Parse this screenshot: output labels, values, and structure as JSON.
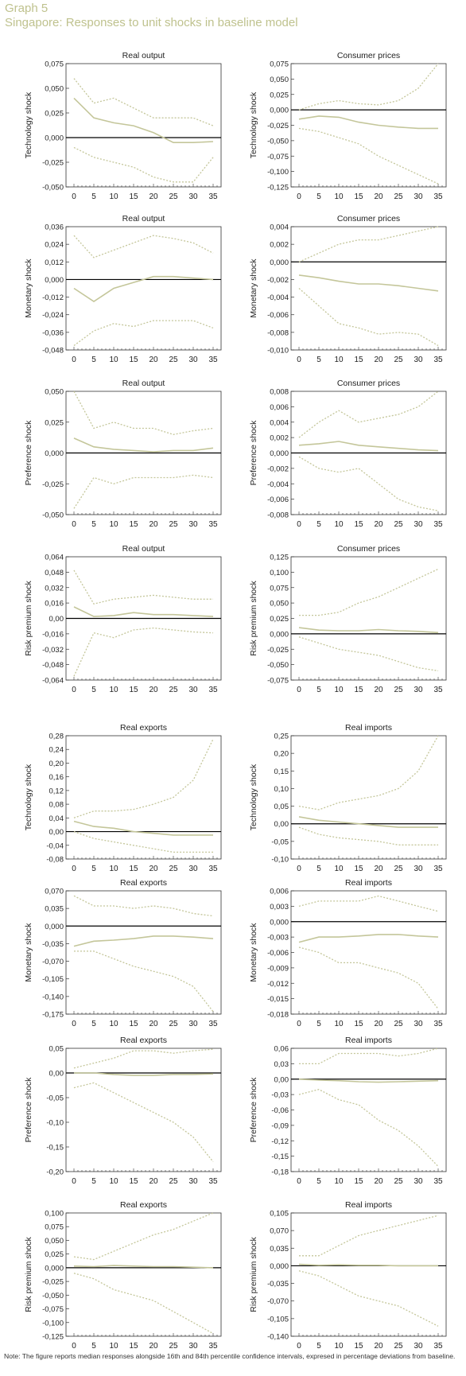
{
  "header": {
    "graph_label": "Graph 5",
    "title": "Singapore: Responses to unit shocks in baseline model"
  },
  "note": "Note: The figure reports median responses alongside 16th and 84th percentile confidence intervals, expresed in percentage deviations from baseline.",
  "style": {
    "median_color": "#c4c69a",
    "band_color": "#c4c69a",
    "zero_line_color": "#000000",
    "frame_color": "#333333"
  },
  "chart_data": [
    {
      "type": "line",
      "title": "Real output",
      "ylabel": "Technology shock",
      "x": [
        0,
        5,
        10,
        15,
        20,
        25,
        30,
        35
      ],
      "xlim": [
        -2,
        37
      ],
      "ylim": [
        -0.05,
        0.075
      ],
      "yticks": [
        "0,075",
        "0,050",
        "0,025",
        "0,000",
        "-0,025",
        "-0,050"
      ],
      "series": [
        {
          "values": [
            0.04,
            0.02,
            0.015,
            0.012,
            0.005,
            -0.005,
            -0.005,
            -0.004
          ]
        },
        {
          "values": [
            0.06,
            0.035,
            0.04,
            0.03,
            0.02,
            0.02,
            0.02,
            0.012
          ]
        },
        {
          "values": [
            -0.01,
            -0.02,
            -0.025,
            -0.03,
            -0.04,
            -0.045,
            -0.045,
            -0.02
          ]
        }
      ]
    },
    {
      "type": "line",
      "title": "Consumer prices",
      "ylabel": "Technology shock",
      "x": [
        0,
        5,
        10,
        15,
        20,
        25,
        30,
        35
      ],
      "xlim": [
        -2,
        37
      ],
      "ylim": [
        -0.125,
        0.075
      ],
      "yticks": [
        "0,075",
        "0,050",
        "0,025",
        "0,000",
        "-0,025",
        "-0,050",
        "-0,075",
        "-0,100",
        "-0,125"
      ],
      "series": [
        {
          "values": [
            -0.015,
            -0.01,
            -0.012,
            -0.02,
            -0.025,
            -0.028,
            -0.03,
            -0.03
          ]
        },
        {
          "values": [
            0,
            0.01,
            0.015,
            0.01,
            0.008,
            0.015,
            0.035,
            0.075
          ]
        },
        {
          "values": [
            -0.03,
            -0.035,
            -0.045,
            -0.055,
            -0.075,
            -0.09,
            -0.105,
            -0.12
          ]
        }
      ]
    },
    {
      "type": "line",
      "title": "Real output",
      "ylabel": "Monetary shock",
      "x": [
        0,
        5,
        10,
        15,
        20,
        25,
        30,
        35
      ],
      "xlim": [
        -2,
        37
      ],
      "ylim": [
        -0.048,
        0.036
      ],
      "yticks": [
        "0,036",
        "0,024",
        "0,012",
        "0,000",
        "-0,012",
        "-0,024",
        "-0,036",
        "-0,048"
      ],
      "series": [
        {
          "values": [
            -0.006,
            -0.015,
            -0.006,
            -0.002,
            0.002,
            0.002,
            0.001,
            0.0
          ]
        },
        {
          "values": [
            0.03,
            0.015,
            0.02,
            0.025,
            0.03,
            0.028,
            0.025,
            0.018
          ]
        },
        {
          "values": [
            -0.045,
            -0.035,
            -0.03,
            -0.032,
            -0.028,
            -0.028,
            -0.028,
            -0.033
          ]
        }
      ]
    },
    {
      "type": "line",
      "title": "Consumer prices",
      "ylabel": "Monetary shock",
      "x": [
        0,
        5,
        10,
        15,
        20,
        25,
        30,
        35
      ],
      "xlim": [
        -2,
        37
      ],
      "ylim": [
        -0.01,
        0.004
      ],
      "yticks": [
        "0,004",
        "0,002",
        "0,000",
        "-0,002",
        "-0,004",
        "-0,006",
        "-0,008",
        "-0,010"
      ],
      "series": [
        {
          "values": [
            -0.0015,
            -0.0018,
            -0.0022,
            -0.0025,
            -0.0025,
            -0.0027,
            -0.003,
            -0.0033
          ]
        },
        {
          "values": [
            0,
            0.001,
            0.002,
            0.0025,
            0.0025,
            0.003,
            0.0035,
            0.004
          ]
        },
        {
          "values": [
            -0.003,
            -0.005,
            -0.007,
            -0.0075,
            -0.0082,
            -0.008,
            -0.0082,
            -0.0095
          ]
        }
      ]
    },
    {
      "type": "line",
      "title": "Real output",
      "ylabel": "Preference shock",
      "x": [
        0,
        5,
        10,
        15,
        20,
        25,
        30,
        35
      ],
      "xlim": [
        -2,
        37
      ],
      "ylim": [
        -0.05,
        0.05
      ],
      "yticks": [
        "0,050",
        "0,025",
        "0,000",
        "-0,025",
        "-0,050"
      ],
      "series": [
        {
          "values": [
            0.012,
            0.005,
            0.003,
            0.002,
            0.001,
            0.002,
            0.002,
            0.004
          ]
        },
        {
          "values": [
            0.05,
            0.02,
            0.025,
            0.02,
            0.02,
            0.015,
            0.018,
            0.02
          ]
        },
        {
          "values": [
            -0.045,
            -0.02,
            -0.025,
            -0.02,
            -0.02,
            -0.02,
            -0.018,
            -0.02
          ]
        }
      ]
    },
    {
      "type": "line",
      "title": "Consumer prices",
      "ylabel": "Preference shock",
      "x": [
        0,
        5,
        10,
        15,
        20,
        25,
        30,
        35
      ],
      "xlim": [
        -2,
        37
      ],
      "ylim": [
        -0.008,
        0.008
      ],
      "yticks": [
        "0,008",
        "0,006",
        "0,004",
        "0,002",
        "0,000",
        "-0,002",
        "-0,004",
        "-0,006",
        "-0,008"
      ],
      "series": [
        {
          "values": [
            0.001,
            0.0012,
            0.0015,
            0.001,
            0.0008,
            0.0006,
            0.0004,
            0.0003
          ]
        },
        {
          "values": [
            0.002,
            0.004,
            0.0055,
            0.004,
            0.0045,
            0.005,
            0.006,
            0.008
          ]
        },
        {
          "values": [
            -0.0005,
            -0.002,
            -0.0025,
            -0.002,
            -0.004,
            -0.006,
            -0.007,
            -0.0075
          ]
        }
      ]
    },
    {
      "type": "line",
      "title": "Real output",
      "ylabel": "Risk premium shock",
      "x": [
        0,
        5,
        10,
        15,
        20,
        25,
        30,
        35
      ],
      "xlim": [
        -2,
        37
      ],
      "ylim": [
        -0.064,
        0.064
      ],
      "yticks": [
        "0,064",
        "0,048",
        "0,032",
        "0,016",
        "0,00",
        "-0,016",
        "-0,032",
        "-0,048",
        "-0,064"
      ],
      "series": [
        {
          "values": [
            0.012,
            0.002,
            0.003,
            0.006,
            0.004,
            0.004,
            0.003,
            0.002
          ]
        },
        {
          "values": [
            0.05,
            0.015,
            0.02,
            0.022,
            0.024,
            0.022,
            0.02,
            0.02
          ]
        },
        {
          "values": [
            -0.06,
            -0.015,
            -0.02,
            -0.012,
            -0.01,
            -0.012,
            -0.014,
            -0.015
          ]
        }
      ]
    },
    {
      "type": "line",
      "title": "Consumer prices",
      "ylabel": "Risk premium shock",
      "x": [
        0,
        5,
        10,
        15,
        20,
        25,
        30,
        35
      ],
      "xlim": [
        -2,
        37
      ],
      "ylim": [
        -0.075,
        0.125
      ],
      "yticks": [
        "0,125",
        "0,100",
        "0,075",
        "0,050",
        "0,025",
        "0,000",
        "-0,025",
        "-0,050",
        "-0,075"
      ],
      "series": [
        {
          "values": [
            0.01,
            0.006,
            0.005,
            0.005,
            0.007,
            0.005,
            0.004,
            0.002
          ]
        },
        {
          "values": [
            0.03,
            0.03,
            0.035,
            0.05,
            0.06,
            0.075,
            0.09,
            0.105
          ]
        },
        {
          "values": [
            -0.005,
            -0.015,
            -0.025,
            -0.03,
            -0.035,
            -0.045,
            -0.055,
            -0.06
          ]
        }
      ]
    },
    {
      "type": "line",
      "title": "Real exports",
      "ylabel": "Technology shock",
      "x": [
        0,
        5,
        10,
        15,
        20,
        25,
        30,
        35
      ],
      "xlim": [
        -2,
        37
      ],
      "ylim": [
        -0.08,
        0.28
      ],
      "yticks": [
        "0,28",
        "0,24",
        "0,20",
        "0,16",
        "0,12",
        "0,08",
        "0,04",
        "0,00",
        "-0,04",
        "-0,08"
      ],
      "series": [
        {
          "values": [
            0.03,
            0.015,
            0.01,
            0.0,
            -0.005,
            -0.01,
            -0.01,
            -0.01
          ]
        },
        {
          "values": [
            0.04,
            0.06,
            0.06,
            0.065,
            0.08,
            0.1,
            0.15,
            0.27
          ]
        },
        {
          "values": [
            0.0,
            -0.02,
            -0.03,
            -0.04,
            -0.05,
            -0.06,
            -0.06,
            -0.06
          ]
        }
      ]
    },
    {
      "type": "line",
      "title": "Real imports",
      "ylabel": "Technology shock",
      "x": [
        0,
        5,
        10,
        15,
        20,
        25,
        30,
        35
      ],
      "xlim": [
        -2,
        37
      ],
      "ylim": [
        -0.1,
        0.25
      ],
      "yticks": [
        "0,25",
        "0,20",
        "0,15",
        "0,10",
        "0,05",
        "0,00",
        "-0,05",
        "-0,10"
      ],
      "series": [
        {
          "values": [
            0.02,
            0.01,
            0.005,
            0.0,
            -0.005,
            -0.01,
            -0.01,
            -0.01
          ]
        },
        {
          "values": [
            0.05,
            0.04,
            0.06,
            0.07,
            0.08,
            0.1,
            0.15,
            0.25
          ]
        },
        {
          "values": [
            -0.01,
            -0.03,
            -0.04,
            -0.045,
            -0.05,
            -0.06,
            -0.06,
            -0.06
          ]
        }
      ]
    },
    {
      "type": "line",
      "title": "Real exports",
      "ylabel": "Monetary shock",
      "x": [
        0,
        5,
        10,
        15,
        20,
        25,
        30,
        35
      ],
      "xlim": [
        -2,
        37
      ],
      "ylim": [
        -0.175,
        0.07
      ],
      "yticks": [
        "0,070",
        "0,035",
        "0,000",
        "-0,035",
        "-0,070",
        "-0,105",
        "-0,140",
        "-0,175"
      ],
      "series": [
        {
          "values": [
            -0.04,
            -0.03,
            -0.028,
            -0.025,
            -0.02,
            -0.02,
            -0.022,
            -0.025
          ]
        },
        {
          "values": [
            0.06,
            0.04,
            0.04,
            0.035,
            0.04,
            0.035,
            0.025,
            0.02
          ]
        },
        {
          "values": [
            -0.05,
            -0.05,
            -0.065,
            -0.08,
            -0.09,
            -0.1,
            -0.12,
            -0.17
          ]
        }
      ]
    },
    {
      "type": "line",
      "title": "Real imports",
      "ylabel": "Monetary shock",
      "x": [
        0,
        5,
        10,
        15,
        20,
        25,
        30,
        35
      ],
      "xlim": [
        -2,
        37
      ],
      "ylim": [
        -0.018,
        0.006
      ],
      "yticks": [
        "0,006",
        "0,003",
        "0,000",
        "-0,003",
        "-0,006",
        "-0,009",
        "-0,012",
        "-0,015",
        "-0,018"
      ],
      "series": [
        {
          "values": [
            -0.004,
            -0.003,
            -0.003,
            -0.0028,
            -0.0025,
            -0.0025,
            -0.0028,
            -0.003
          ]
        },
        {
          "values": [
            0.003,
            0.004,
            0.004,
            0.004,
            0.005,
            0.004,
            0.003,
            0.002
          ]
        },
        {
          "values": [
            -0.005,
            -0.006,
            -0.008,
            -0.008,
            -0.009,
            -0.01,
            -0.012,
            -0.017
          ]
        }
      ]
    },
    {
      "type": "line",
      "title": "Real exports",
      "ylabel": "Preference shock",
      "x": [
        0,
        5,
        10,
        15,
        20,
        25,
        30,
        35
      ],
      "xlim": [
        -2,
        37
      ],
      "ylim": [
        -0.2,
        0.05
      ],
      "yticks": [
        "0,05",
        "0,00",
        "-0,05",
        "-0,10",
        "-0,15",
        "-0,20"
      ],
      "series": [
        {
          "values": [
            0.0,
            0.0,
            -0.003,
            -0.005,
            -0.005,
            -0.003,
            -0.003,
            -0.002
          ]
        },
        {
          "values": [
            0.01,
            0.02,
            0.03,
            0.045,
            0.045,
            0.04,
            0.045,
            0.048
          ]
        },
        {
          "values": [
            -0.03,
            -0.02,
            -0.04,
            -0.06,
            -0.08,
            -0.1,
            -0.13,
            -0.18
          ]
        }
      ]
    },
    {
      "type": "line",
      "title": "Real imports",
      "ylabel": "Preference shock",
      "x": [
        0,
        5,
        10,
        15,
        20,
        25,
        30,
        35
      ],
      "xlim": [
        -2,
        37
      ],
      "ylim": [
        -0.18,
        0.06
      ],
      "yticks": [
        "0,06",
        "0,03",
        "0,00",
        "-0,03",
        "-0,06",
        "-0,09",
        "-0,12",
        "-0,15",
        "-0,18"
      ],
      "series": [
        {
          "values": [
            0.0,
            -0.002,
            -0.003,
            -0.005,
            -0.006,
            -0.005,
            -0.004,
            -0.003
          ]
        },
        {
          "values": [
            0.03,
            0.03,
            0.05,
            0.05,
            0.05,
            0.045,
            0.05,
            0.06
          ]
        },
        {
          "values": [
            -0.03,
            -0.02,
            -0.04,
            -0.05,
            -0.08,
            -0.1,
            -0.13,
            -0.17
          ]
        }
      ]
    },
    {
      "type": "line",
      "title": "Real exports",
      "ylabel": "Risk premium shock",
      "x": [
        0,
        5,
        10,
        15,
        20,
        25,
        30,
        35
      ],
      "xlim": [
        -2,
        37
      ],
      "ylim": [
        -0.125,
        0.1
      ],
      "yticks": [
        "0,100",
        "0,075",
        "0,050",
        "0,025",
        "0,000",
        "-0,025",
        "-0,050",
        "-0,075",
        "-0,100",
        "-0,125"
      ],
      "series": [
        {
          "values": [
            0.003,
            0.002,
            0.004,
            0.003,
            0.002,
            0.002,
            0.001,
            0.0
          ]
        },
        {
          "values": [
            0.02,
            0.015,
            0.03,
            0.045,
            0.06,
            0.07,
            0.085,
            0.1
          ]
        },
        {
          "values": [
            -0.01,
            -0.02,
            -0.04,
            -0.05,
            -0.06,
            -0.08,
            -0.1,
            -0.12
          ]
        }
      ]
    },
    {
      "type": "line",
      "title": "Real imports",
      "ylabel": "Risk premium shock",
      "x": [
        0,
        5,
        10,
        15,
        20,
        25,
        30,
        35
      ],
      "xlim": [
        -2,
        37
      ],
      "ylim": [
        -0.14,
        0.105
      ],
      "yticks": [
        "0,105",
        "0,070",
        "0,035",
        "0,000",
        "-0,035",
        "-0,070",
        "-0,105",
        "-0,140"
      ],
      "series": [
        {
          "values": [
            0.003,
            0.001,
            0.002,
            0.001,
            0.001,
            0.0,
            0.0,
            0.0
          ]
        },
        {
          "values": [
            0.02,
            0.02,
            0.04,
            0.06,
            0.07,
            0.08,
            0.09,
            0.1
          ]
        },
        {
          "values": [
            -0.01,
            -0.02,
            -0.04,
            -0.06,
            -0.07,
            -0.08,
            -0.1,
            -0.12
          ]
        }
      ]
    }
  ]
}
